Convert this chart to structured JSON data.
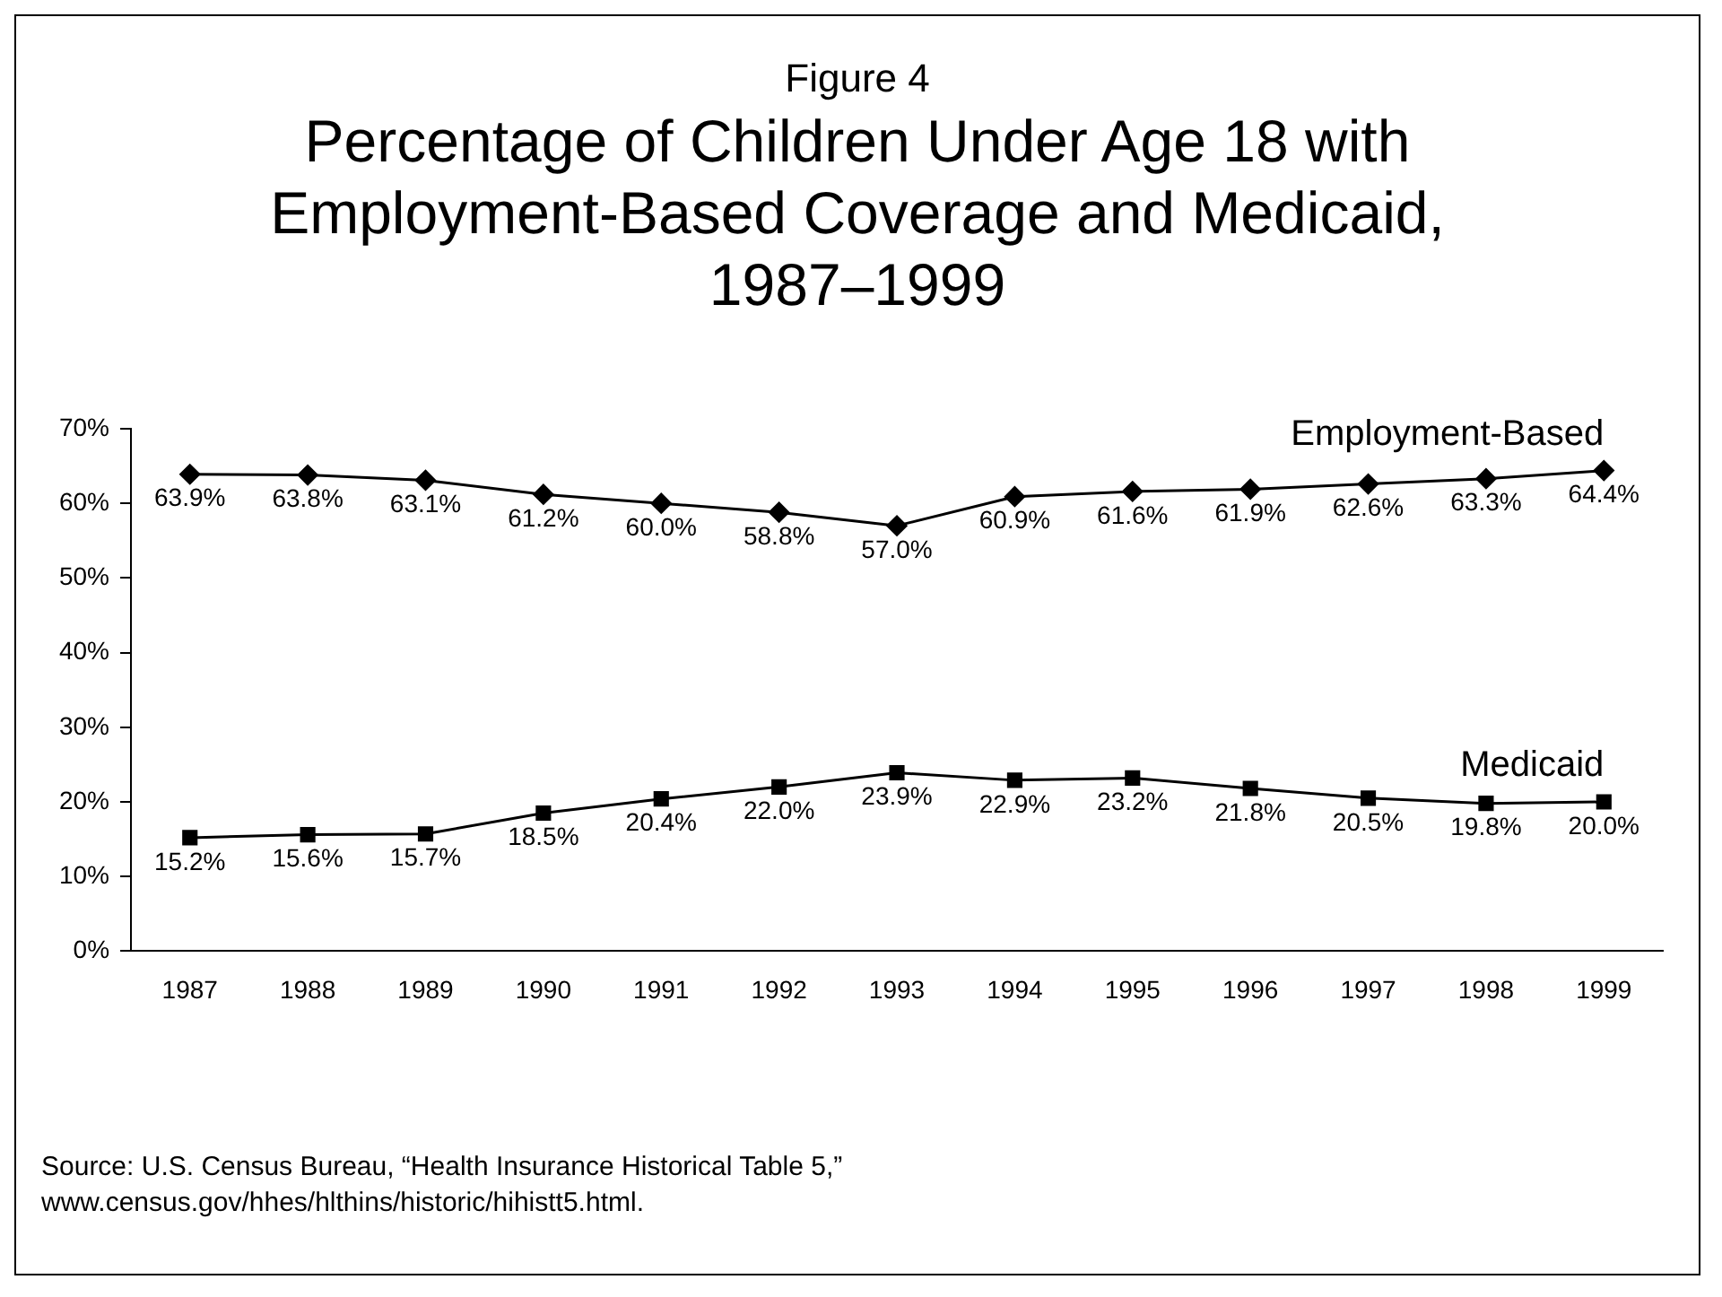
{
  "chart_data": {
    "type": "line",
    "subtitle": "Figure 4",
    "title": "Percentage of Children Under Age 18 with Employment-Based Coverage and Medicaid, 1987–1999",
    "categories": [
      "1987",
      "1988",
      "1989",
      "1990",
      "1991",
      "1992",
      "1993",
      "1994",
      "1995",
      "1996",
      "1997",
      "1998",
      "1999"
    ],
    "series": [
      {
        "name": "Employment-Based",
        "color": "#000000",
        "marker": "diamond",
        "values": [
          63.9,
          63.8,
          63.1,
          61.2,
          60.0,
          58.8,
          57.0,
          60.9,
          61.6,
          61.9,
          62.6,
          63.3,
          64.4
        ],
        "value_labels": [
          "63.9%",
          "63.8%",
          "63.1%",
          "61.2%",
          "60.0%",
          "58.8%",
          "57.0%",
          "60.9%",
          "61.6%",
          "61.9%",
          "62.6%",
          "63.3%",
          "64.4%"
        ]
      },
      {
        "name": "Medicaid",
        "color": "#000000",
        "marker": "square",
        "values": [
          15.2,
          15.6,
          15.7,
          18.5,
          20.4,
          22.0,
          23.9,
          22.9,
          23.2,
          21.8,
          20.5,
          19.8,
          20.0
        ],
        "value_labels": [
          "15.2%",
          "15.6%",
          "15.7%",
          "18.5%",
          "20.4%",
          "22.0%",
          "23.9%",
          "22.9%",
          "23.2%",
          "21.8%",
          "20.5%",
          "19.8%",
          "20.0%"
        ]
      }
    ],
    "ylim": [
      0,
      70
    ],
    "yticks": [
      {
        "value": 0,
        "label": "0%"
      },
      {
        "value": 10,
        "label": "10%"
      },
      {
        "value": 20,
        "label": "20%"
      },
      {
        "value": 30,
        "label": "30%"
      },
      {
        "value": 40,
        "label": "40%"
      },
      {
        "value": 50,
        "label": "50%"
      },
      {
        "value": 60,
        "label": "60%"
      },
      {
        "value": 70,
        "label": "70%"
      }
    ],
    "grid": false,
    "legend": false,
    "line_style": "solid",
    "annotations": [
      "Source: U.S. Census Bureau, “Health Insurance Historical Table 5,” www.census.gov/hhes/hlthins/historic/hihistt5.html."
    ]
  }
}
